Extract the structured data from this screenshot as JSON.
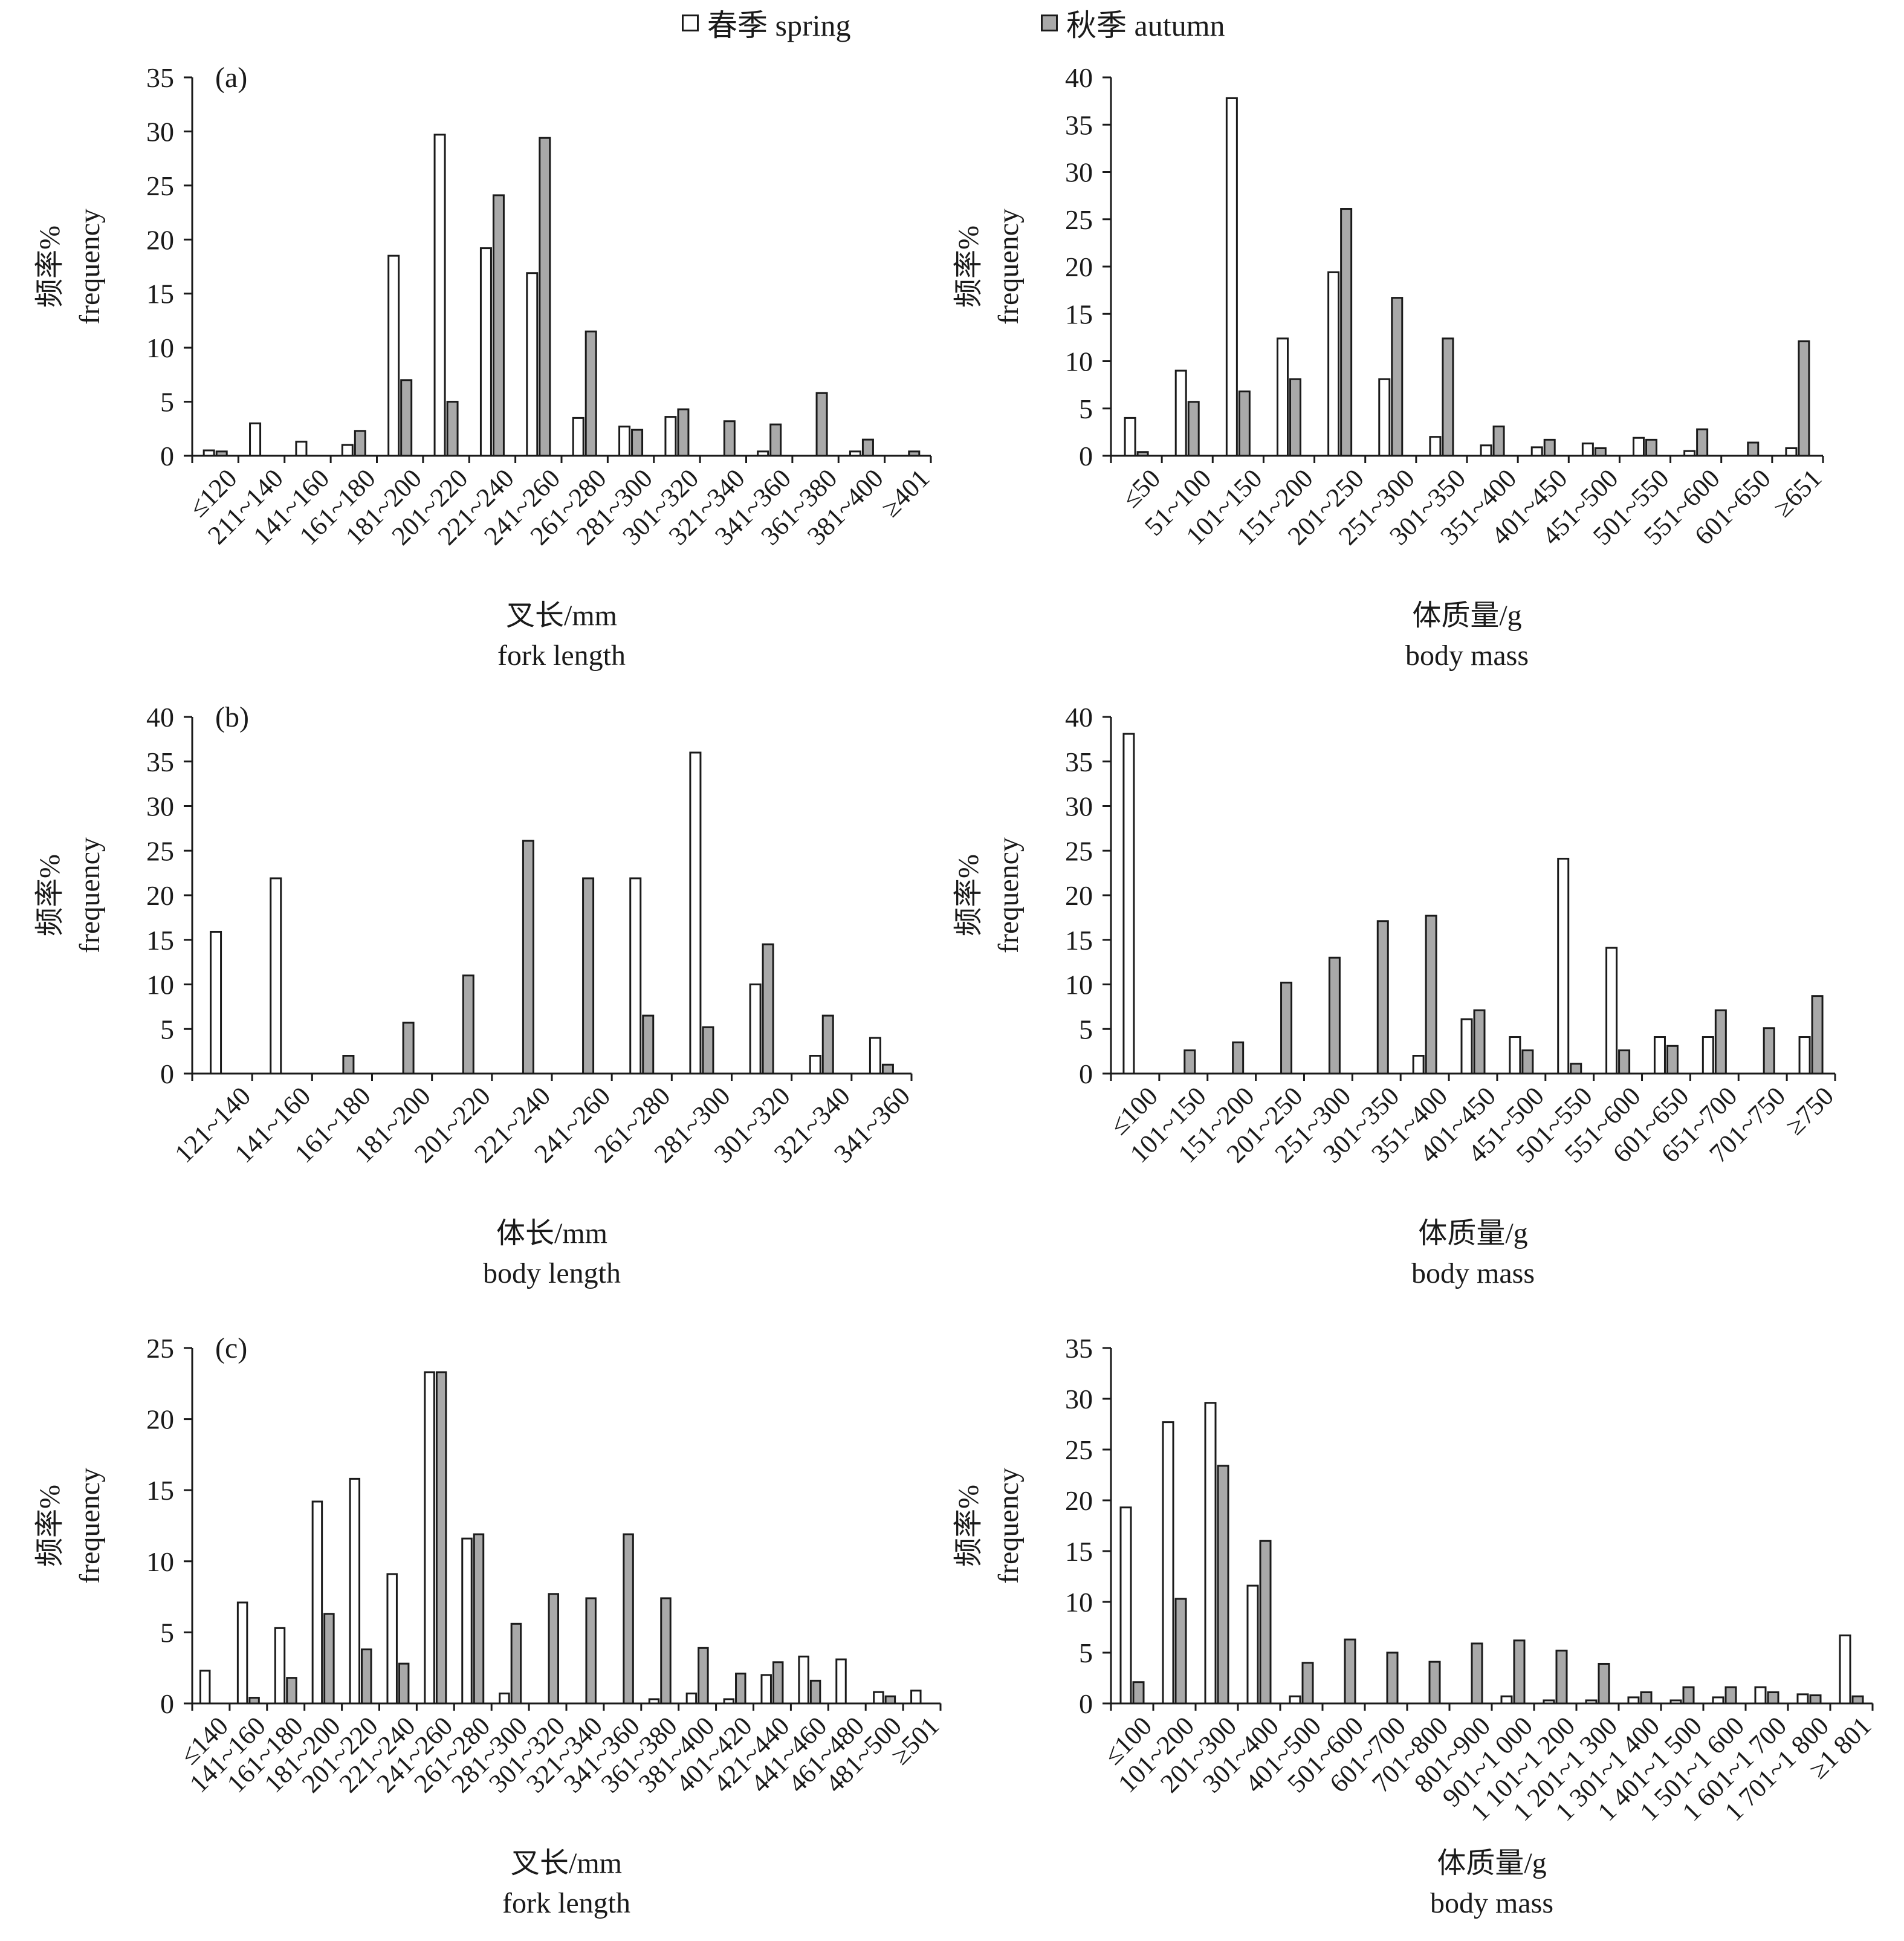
{
  "legend": {
    "spring": "春季 spring",
    "autumn": "秋季 autumn"
  },
  "colors": {
    "spring": "#ffffff",
    "autumn": "#a9a9a9",
    "stroke": "#1a1a1a"
  },
  "chart_data": [
    {
      "type": "bar",
      "panel_label": "(a)",
      "ylabel_cn": "频率%",
      "ylabel_en": "frequency",
      "xlabel_cn": "叉长/mm",
      "xlabel_en": "fork length",
      "ylim": [
        0,
        35
      ],
      "yticks": [
        0,
        5,
        10,
        15,
        20,
        25,
        30,
        35
      ],
      "categories": [
        "≤120",
        "211~140",
        "141~160",
        "161~180",
        "181~200",
        "201~220",
        "221~240",
        "241~260",
        "261~280",
        "281~300",
        "301~320",
        "321~340",
        "341~360",
        "361~380",
        "381~400",
        "≥401"
      ],
      "series": [
        {
          "name": "春季 spring",
          "values": [
            0.5,
            3.0,
            1.3,
            1.0,
            18.5,
            29.7,
            19.2,
            16.9,
            3.5,
            2.7,
            3.6,
            0,
            0.4,
            0,
            0.4,
            0
          ]
        },
        {
          "name": "秋季 autumn",
          "values": [
            0.4,
            0,
            0,
            2.3,
            7.0,
            5.0,
            24.1,
            29.4,
            11.5,
            2.4,
            4.3,
            3.2,
            2.9,
            5.8,
            1.5,
            0.4
          ]
        }
      ]
    },
    {
      "type": "bar",
      "ylabel_cn": "频率%",
      "ylabel_en": "frequency",
      "xlabel_cn": "体质量/g",
      "xlabel_en": "body mass",
      "ylim": [
        0,
        40
      ],
      "yticks": [
        0,
        5,
        10,
        15,
        20,
        25,
        30,
        35,
        40
      ],
      "categories": [
        "≤50",
        "51~100",
        "101~150",
        "151~200",
        "201~250",
        "251~300",
        "301~350",
        "351~400",
        "401~450",
        "451~500",
        "501~550",
        "551~600",
        "601~650",
        "≥651"
      ],
      "series": [
        {
          "name": "春季 spring",
          "values": [
            4.0,
            9.0,
            37.8,
            12.4,
            19.4,
            8.1,
            2.0,
            1.1,
            0.9,
            1.3,
            1.9,
            0.5,
            0,
            0.8
          ]
        },
        {
          "name": "秋季 autumn",
          "values": [
            0.4,
            5.7,
            6.8,
            8.1,
            26.1,
            16.7,
            12.4,
            3.1,
            1.7,
            0.8,
            1.7,
            2.8,
            1.4,
            12.1
          ]
        }
      ]
    },
    {
      "type": "bar",
      "panel_label": "(b)",
      "ylabel_cn": "频率%",
      "ylabel_en": "frequency",
      "xlabel_cn": "体长/mm",
      "xlabel_en": "body length",
      "ylim": [
        0,
        40
      ],
      "yticks": [
        0,
        5,
        10,
        15,
        20,
        25,
        30,
        35,
        40
      ],
      "categories": [
        "121~140",
        "141~160",
        "161~180",
        "181~200",
        "201~220",
        "221~240",
        "241~260",
        "261~280",
        "281~300",
        "301~320",
        "321~340",
        "341~360"
      ],
      "series": [
        {
          "name": "春季 spring",
          "values": [
            15.9,
            21.9,
            0,
            0,
            0,
            0,
            0,
            21.9,
            36.0,
            10.0,
            2.0,
            4.0
          ]
        },
        {
          "name": "秋季 autumn",
          "values": [
            0,
            0,
            2.0,
            5.7,
            11.0,
            26.1,
            21.9,
            6.5,
            5.2,
            14.5,
            6.5,
            1.0
          ]
        }
      ]
    },
    {
      "type": "bar",
      "ylabel_cn": "频率%",
      "ylabel_en": "frequency",
      "xlabel_cn": "体质量/g",
      "xlabel_en": "body mass",
      "ylim": [
        0,
        40
      ],
      "yticks": [
        0,
        5,
        10,
        15,
        20,
        25,
        30,
        35,
        40
      ],
      "categories": [
        "≤100",
        "101~150",
        "151~200",
        "201~250",
        "251~300",
        "301~350",
        "351~400",
        "401~450",
        "451~500",
        "501~550",
        "551~600",
        "601~650",
        "651~700",
        "701~750",
        "≥750"
      ],
      "series": [
        {
          "name": "春季 spring",
          "values": [
            38.1,
            0,
            0,
            0,
            0,
            0,
            2.0,
            6.1,
            4.1,
            24.1,
            14.1,
            4.1,
            4.1,
            0,
            4.1
          ]
        },
        {
          "name": "秋季 autumn",
          "values": [
            0,
            2.6,
            3.5,
            10.2,
            13.0,
            17.1,
            17.7,
            7.1,
            2.6,
            1.1,
            2.6,
            3.1,
            7.1,
            5.1,
            8.7
          ]
        }
      ]
    },
    {
      "type": "bar",
      "panel_label": "(c)",
      "ylabel_cn": "频率%",
      "ylabel_en": "frequency",
      "xlabel_cn": "叉长/mm",
      "xlabel_en": "fork length",
      "ylim": [
        0,
        25
      ],
      "yticks": [
        0,
        5,
        10,
        15,
        20,
        25
      ],
      "categories": [
        "≤140",
        "141~160",
        "161~180",
        "181~200",
        "201~220",
        "221~240",
        "241~260",
        "261~280",
        "281~300",
        "301~320",
        "321~340",
        "341~360",
        "361~380",
        "381~400",
        "401~420",
        "421~440",
        "441~460",
        "461~480",
        "481~500",
        "≥501"
      ],
      "series": [
        {
          "name": "春季 spring",
          "values": [
            2.3,
            7.1,
            5.3,
            14.2,
            15.8,
            9.1,
            23.3,
            11.6,
            0.7,
            0,
            0,
            0,
            0.3,
            0.7,
            0.3,
            2.0,
            3.3,
            3.1,
            0.8,
            0.9
          ]
        },
        {
          "name": "秋季 autumn",
          "values": [
            0,
            0.4,
            1.8,
            6.3,
            3.8,
            2.8,
            23.3,
            11.9,
            5.6,
            7.7,
            7.4,
            11.9,
            7.4,
            3.9,
            2.1,
            2.9,
            1.6,
            0,
            0.5,
            0
          ]
        }
      ]
    },
    {
      "type": "bar",
      "ylabel_cn": "频率%",
      "ylabel_en": "frequency",
      "xlabel_cn": "体质量/g",
      "xlabel_en": "body mass",
      "ylim": [
        0,
        35
      ],
      "yticks": [
        0,
        5,
        10,
        15,
        20,
        25,
        30,
        35
      ],
      "categories": [
        "≤100",
        "101~200",
        "201~300",
        "301~400",
        "401~500",
        "501~600",
        "601~700",
        "701~800",
        "801~900",
        "901~1 000",
        "1 101~1 200",
        "1 201~1 300",
        "1 301~1 400",
        "1 401~1 500",
        "1 501~1 600",
        "1 601~1 700",
        "1 701~1 800",
        "≥1 801"
      ],
      "series": [
        {
          "name": "春季 spring",
          "values": [
            19.3,
            27.7,
            29.6,
            11.6,
            0.7,
            0,
            0,
            0,
            0,
            0.7,
            0.3,
            0.3,
            0.6,
            0.3,
            0.6,
            1.6,
            0.9,
            6.7
          ]
        },
        {
          "name": "秋季 autumn",
          "values": [
            2.1,
            10.3,
            23.4,
            16.0,
            4.0,
            6.3,
            5.0,
            4.1,
            5.9,
            6.2,
            5.2,
            3.9,
            1.1,
            1.6,
            1.6,
            1.1,
            0.8,
            0.7
          ]
        }
      ]
    }
  ]
}
